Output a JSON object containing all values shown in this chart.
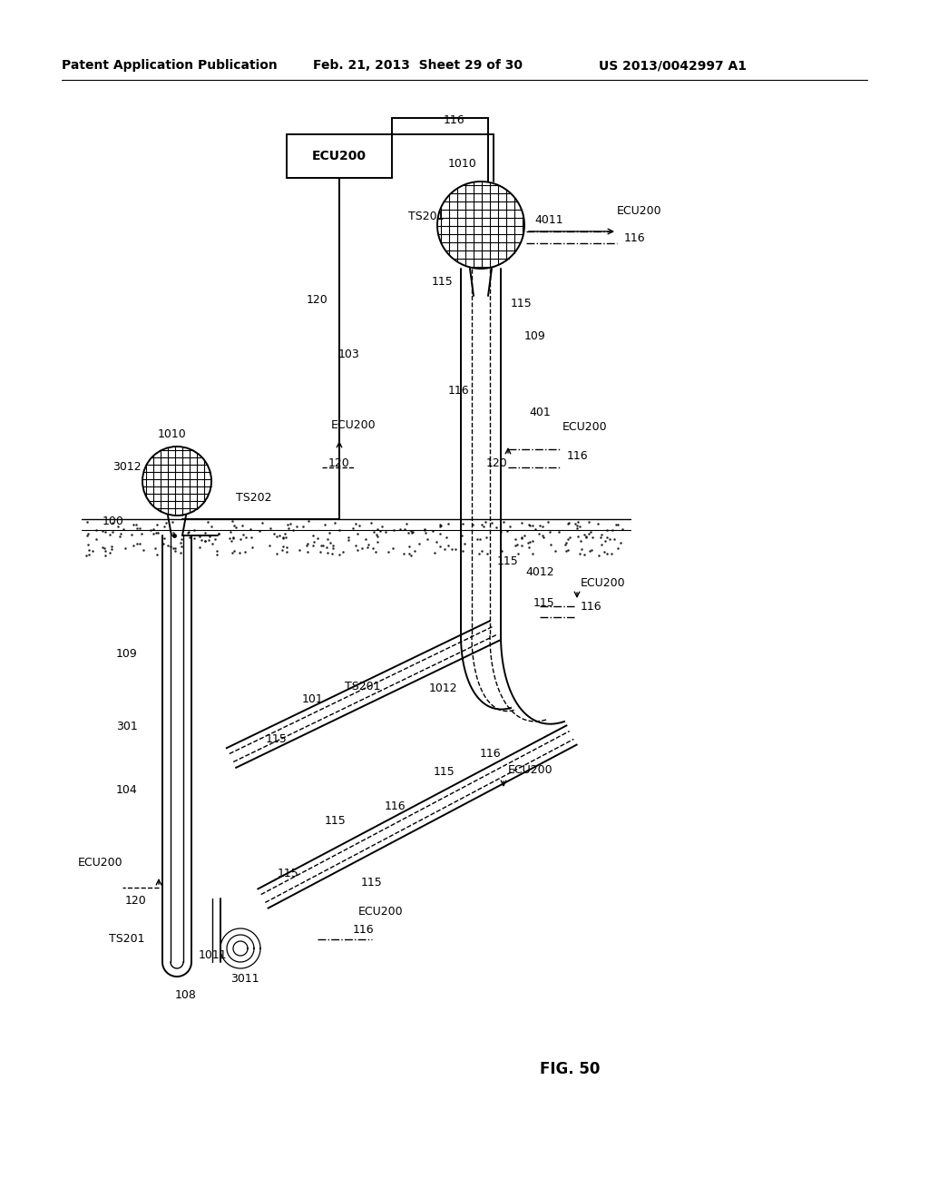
{
  "bg_color": "#ffffff",
  "line_color": "#000000",
  "header_text": "Patent Application Publication",
  "header_date": "Feb. 21, 2013  Sheet 29 of 30",
  "header_patent": "US 2013/0042997 A1",
  "fig_label": "FIG. 50",
  "title_fontsize": 11,
  "label_fontsize": 9
}
